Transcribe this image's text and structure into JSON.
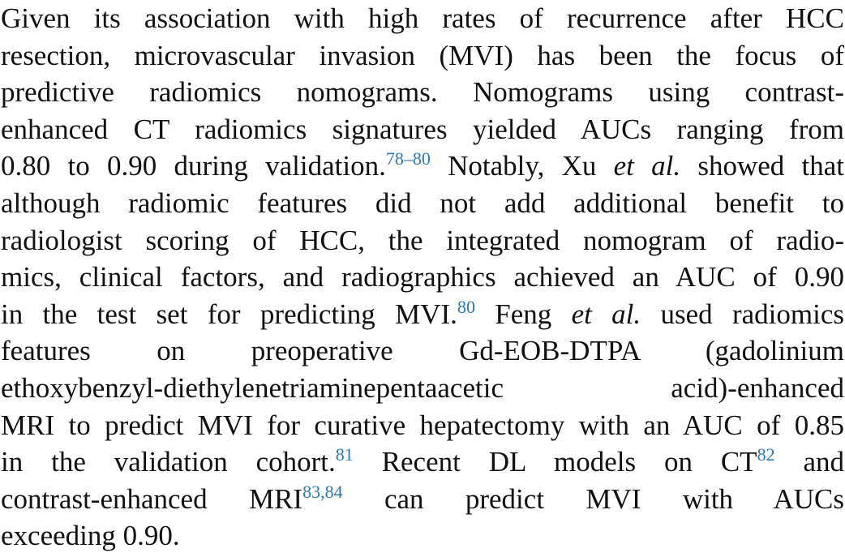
{
  "paragraph": {
    "l01": "Given its association with high rates of recurrence after HCC",
    "l02": "resection, microvascular invasion (MVI) has been the focus of",
    "l03": "predictive radiomics nomograms. Nomograms using contrast-",
    "l04": "enhanced CT radiomics signatures yielded AUCs ranging from",
    "l05a": "0.80 to 0.90 during validation.",
    "l05ref": "78–80",
    "l05b": " Notably, Xu ",
    "l05it": "et al.",
    "l05c": " showed that",
    "l06": "although radiomic features did not add additional benefit to",
    "l07": "radiologist scoring of HCC, the integrated nomogram of radio-",
    "l08": "mics, clinical factors, and radiographics achieved an AUC of 0.90",
    "l09a": "in the test set for predicting MVI.",
    "l09ref": "80",
    "l09b": " Feng ",
    "l09it": "et al.",
    "l09c": " used radiomics",
    "l10": "features on preoperative Gd-EOB-DTPA (gadolinium",
    "l11": "ethoxybenzyl-diethylenetriaminepentaacetic acid)-enhanced",
    "l12": "MRI to predict MVI for curative hepatectomy with an AUC of 0.85",
    "l13a": "in the validation cohort.",
    "l13ref1": "81",
    "l13b": " Recent DL models on CT",
    "l13ref2": "82",
    "l13c": " and",
    "l14a": "contrast-enhanced MRI",
    "l14ref1": "83",
    "l14comma": ",",
    "l14ref2": "84",
    "l14b": " can predict MVI with AUCs",
    "l15": "exceeding 0.90."
  }
}
